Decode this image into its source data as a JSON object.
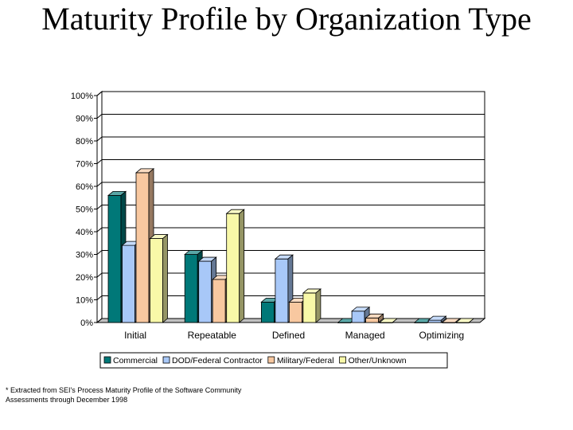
{
  "title": "Maturity Profile by Organization Type",
  "footnote": {
    "line1": "* Extracted from SEI's Process Maturity Profile of the Software Community",
    "line2": "Assessments through December 1998"
  },
  "chart_data": {
    "type": "bar",
    "style": "3d-clustered",
    "categories": [
      "Initial",
      "Repeatable",
      "Defined",
      "Managed",
      "Optimizing"
    ],
    "series": [
      {
        "name": "Commercial",
        "color": "#007878",
        "values": [
          56,
          30,
          9,
          0,
          0
        ]
      },
      {
        "name": "DOD/Federal Contractor",
        "color": "#a8c8f8",
        "values": [
          34,
          27,
          28,
          5,
          1
        ]
      },
      {
        "name": "Military/Federal",
        "color": "#f8c8a0",
        "values": [
          66,
          19,
          9,
          2,
          0
        ]
      },
      {
        "name": "Other/Unknown",
        "color": "#f8f8a8",
        "values": [
          37,
          48,
          13,
          0,
          0
        ]
      }
    ],
    "ylim": [
      0,
      100
    ],
    "yticks": [
      "0%",
      "10%",
      "20%",
      "30%",
      "40%",
      "50%",
      "60%",
      "70%",
      "80%",
      "90%",
      "100%"
    ],
    "grid": true,
    "legend": "bottom"
  }
}
